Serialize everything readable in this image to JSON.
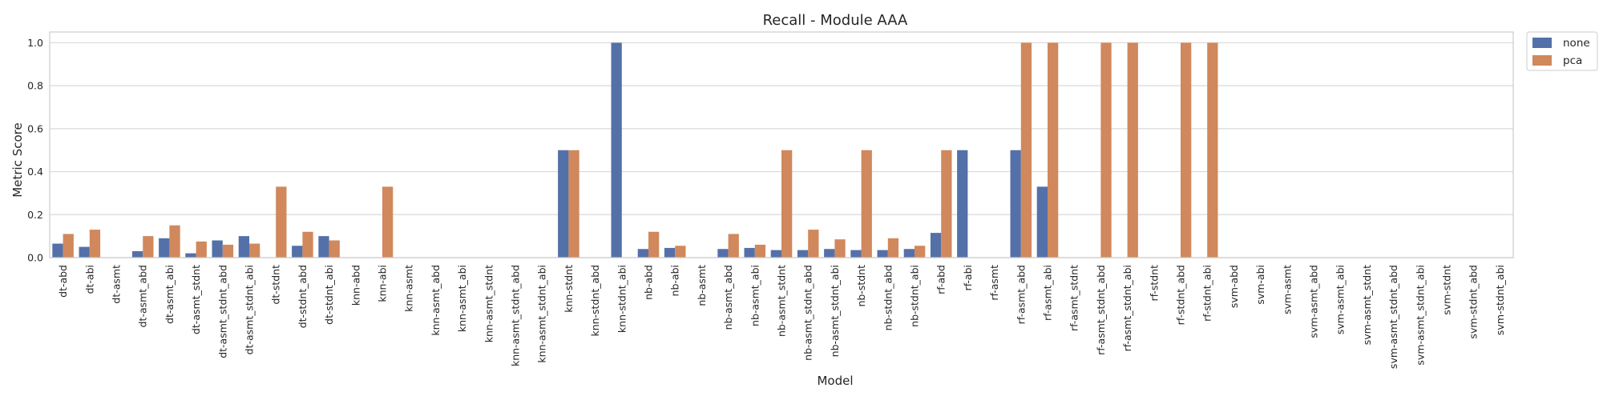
{
  "chart_data": {
    "type": "bar",
    "title": "Recall - Module AAA",
    "xlabel": "Model",
    "ylabel": "Metric Score",
    "ylim": [
      0,
      1.05
    ],
    "yticks": [
      0.0,
      0.2,
      0.4,
      0.6,
      0.8,
      1.0
    ],
    "ytick_labels": [
      "0.0",
      "0.2",
      "0.4",
      "0.6",
      "0.8",
      "1.0"
    ],
    "grid": true,
    "legend_position": "outside-top-right",
    "categories": [
      "dt-abd",
      "dt-abi",
      "dt-asmt",
      "dt-asmt_abd",
      "dt-asmt_abi",
      "dt-asmt_stdnt",
      "dt-asmt_stdnt_abd",
      "dt-asmt_stdnt_abi",
      "dt-stdnt",
      "dt-stdnt_abd",
      "dt-stdnt_abi",
      "knn-abd",
      "knn-abi",
      "knn-asmt",
      "knn-asmt_abd",
      "knn-asmt_abi",
      "knn-asmt_stdnt",
      "knn-asmt_stdnt_abd",
      "knn-asmt_stdnt_abi",
      "knn-stdnt",
      "knn-stdnt_abd",
      "knn-stdnt_abi",
      "nb-abd",
      "nb-abi",
      "nb-asmt",
      "nb-asmt_abd",
      "nb-asmt_abi",
      "nb-asmt_stdnt",
      "nb-asmt_stdnt_abd",
      "nb-asmt_stdnt_abi",
      "nb-stdnt",
      "nb-stdnt_abd",
      "nb-stdnt_abi",
      "rf-abd",
      "rf-abi",
      "rf-asmt",
      "rf-asmt_abd",
      "rf-asmt_abi",
      "rf-asmt_stdnt",
      "rf-asmt_stdnt_abd",
      "rf-asmt_stdnt_abi",
      "rf-stdnt",
      "rf-stdnt_abd",
      "rf-stdnt_abi",
      "svm-abd",
      "svm-abi",
      "svm-asmt",
      "svm-asmt_abd",
      "svm-asmt_abi",
      "svm-asmt_stdnt",
      "svm-asmt_stdnt_abd",
      "svm-asmt_stdnt_abi",
      "svm-stdnt",
      "svm-stdnt_abd",
      "svm-stdnt_abi"
    ],
    "series": [
      {
        "name": "none",
        "color": "#5470a8",
        "values": [
          0.065,
          0.05,
          0,
          0.03,
          0.09,
          0.02,
          0.08,
          0.1,
          0,
          0.055,
          0.1,
          0,
          0,
          0,
          0,
          0,
          0,
          0,
          0,
          0.5,
          0,
          1.0,
          0.04,
          0.045,
          0,
          0.04,
          0.045,
          0.035,
          0.035,
          0.04,
          0.035,
          0.035,
          0.04,
          0.115,
          0.5,
          0,
          0.5,
          0.33,
          0,
          0,
          0,
          0,
          0,
          0,
          0,
          0,
          0,
          0,
          0,
          0,
          0,
          0,
          0,
          0,
          0
        ]
      },
      {
        "name": "pca",
        "color": "#d0885c",
        "values": [
          0.11,
          0.13,
          0,
          0.1,
          0.15,
          0.075,
          0.06,
          0.065,
          0.33,
          0.12,
          0.08,
          0,
          0.33,
          0,
          0,
          0,
          0,
          0,
          0,
          0.5,
          0,
          0,
          0.12,
          0.055,
          0,
          0.11,
          0.06,
          0.5,
          0.13,
          0.085,
          0.5,
          0.09,
          0.055,
          0.5,
          0,
          0,
          1.0,
          1.0,
          0,
          1.0,
          1.0,
          0,
          1.0,
          1.0,
          0,
          0,
          0,
          0,
          0,
          0,
          0,
          0,
          0,
          0,
          0
        ]
      }
    ]
  }
}
